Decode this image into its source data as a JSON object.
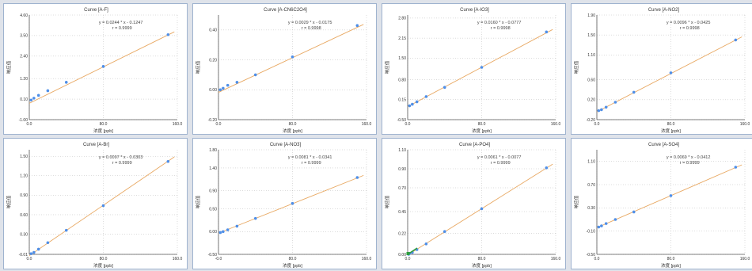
{
  "colors": {
    "line": "#e8a862",
    "point": "#4f8fe8",
    "axis": "#555555",
    "grid": "#b9b9b9",
    "highlight": "#2e9e3e"
  },
  "chart_data": [
    {
      "type": "scatter",
      "title": "Curve [A-F]",
      "equation": "y = 0.0244 * x - 0.1247",
      "r_label": "r = 0.9999",
      "xlabel": "浓度 [ppb]",
      "ylabel": "响应值",
      "xlim": [
        0,
        160
      ],
      "ylim": [
        -1.0,
        4.6
      ],
      "xticks": [
        0,
        80,
        160
      ],
      "xtick_labels": [
        "0.0",
        "80.0",
        "160.0"
      ],
      "yticks": [
        -1.0,
        0.1,
        1.2,
        2.4,
        3.5,
        4.6
      ],
      "ytick_labels": [
        "-1.00",
        "0.10",
        "1.20",
        "2.40",
        "3.50",
        "4.60"
      ],
      "points": [
        [
          2,
          0.05
        ],
        [
          5,
          0.15
        ],
        [
          10,
          0.3
        ],
        [
          20,
          0.55
        ],
        [
          40,
          1.0
        ],
        [
          80,
          1.85
        ],
        [
          150,
          3.55
        ]
      ],
      "fit": {
        "slope": 0.0244,
        "intercept": -0.1247
      }
    },
    {
      "type": "scatter",
      "title": "Curve [A-CN6C2O4]",
      "equation": "y = 0.0029 * x - 0.0175",
      "r_label": "r = 0.9998",
      "xlabel": "浓度 [ppb]",
      "ylabel": "响应值",
      "xlim": [
        0,
        160
      ],
      "ylim": [
        -0.2,
        0.5
      ],
      "xticks": [
        0,
        80,
        160
      ],
      "xtick_labels": [
        "0.0",
        "80.0",
        "160.0"
      ],
      "yticks": [
        -0.2,
        0.0,
        0.2,
        0.4
      ],
      "ytick_labels": [
        "-0.20",
        "0.00",
        "0.20",
        "0.40"
      ],
      "points": [
        [
          2,
          0.0
        ],
        [
          5,
          0.01
        ],
        [
          10,
          0.03
        ],
        [
          20,
          0.05
        ],
        [
          40,
          0.1
        ],
        [
          80,
          0.22
        ],
        [
          150,
          0.43
        ]
      ],
      "fit": {
        "slope": 0.0029,
        "intercept": -0.0175
      }
    },
    {
      "type": "scatter",
      "title": "Curve [A-IO3]",
      "equation": "y = 0.0160 * x - 0.0777",
      "r_label": "r = 0.9998",
      "xlabel": "浓度 [ppb]",
      "ylabel": "响应值",
      "xlim": [
        0,
        160
      ],
      "ylim": [
        -0.5,
        2.9
      ],
      "xticks": [
        0,
        80,
        160
      ],
      "xtick_labels": [
        "0.0",
        "80.0",
        "160.0"
      ],
      "yticks": [
        -0.5,
        0.15,
        0.8,
        1.5,
        2.15,
        2.8
      ],
      "ytick_labels": [
        "-0.50",
        "0.15",
        "0.80",
        "1.50",
        "2.15",
        "2.80"
      ],
      "points": [
        [
          2,
          -0.05
        ],
        [
          5,
          0.0
        ],
        [
          10,
          0.08
        ],
        [
          20,
          0.25
        ],
        [
          40,
          0.55
        ],
        [
          80,
          1.2
        ],
        [
          150,
          2.35
        ]
      ],
      "fit": {
        "slope": 0.016,
        "intercept": -0.0777
      }
    },
    {
      "type": "scatter",
      "title": "Curve [A-NO2]",
      "equation": "y = 0.0096 * x - 0.0425",
      "r_label": "r = 0.9998",
      "xlabel": "浓度 [ppb]",
      "ylabel": "响应值",
      "xlim": [
        0,
        160
      ],
      "ylim": [
        -0.2,
        1.9
      ],
      "xticks": [
        0,
        80,
        160
      ],
      "xtick_labels": [
        "0.0",
        "80.0",
        "160.0"
      ],
      "yticks": [
        -0.2,
        0.2,
        0.6,
        1.1,
        1.5,
        1.9
      ],
      "ytick_labels": [
        "-0.20",
        "0.20",
        "0.60",
        "1.10",
        "1.50",
        "1.90"
      ],
      "points": [
        [
          2,
          -0.02
        ],
        [
          5,
          0.0
        ],
        [
          10,
          0.05
        ],
        [
          20,
          0.15
        ],
        [
          40,
          0.35
        ],
        [
          80,
          0.74
        ],
        [
          150,
          1.4
        ]
      ],
      "fit": {
        "slope": 0.0096,
        "intercept": -0.0425
      }
    },
    {
      "type": "scatter",
      "title": "Curve [A-Br]",
      "equation": "y = 0.0097 * x - 0.0303",
      "r_label": "r = 0.9999",
      "xlabel": "浓度 [ppb]",
      "ylabel": "响应值",
      "xlim": [
        0,
        160
      ],
      "ylim": [
        -0.01,
        1.6
      ],
      "xticks": [
        0,
        80,
        160
      ],
      "xtick_labels": [
        "0.0",
        "80.0",
        "160.0"
      ],
      "yticks": [
        -0.01,
        0.3,
        0.6,
        0.9,
        1.2,
        1.5
      ],
      "ytick_labels": [
        "-0.01",
        "0.30",
        "0.60",
        "0.90",
        "1.20",
        "1.50"
      ],
      "points": [
        [
          2,
          0.0
        ],
        [
          5,
          0.02
        ],
        [
          10,
          0.07
        ],
        [
          20,
          0.17
        ],
        [
          40,
          0.36
        ],
        [
          80,
          0.74
        ],
        [
          150,
          1.42
        ]
      ],
      "fit": {
        "slope": 0.0097,
        "intercept": -0.0303
      }
    },
    {
      "type": "scatter",
      "title": "Curve [A-NO3]",
      "equation": "y = 0.0081 * x - 0.0341",
      "r_label": "r = 0.9999",
      "xlabel": "浓度 [ppb]",
      "ylabel": "响应值",
      "xlim": [
        0,
        160
      ],
      "ylim": [
        -0.5,
        1.8
      ],
      "xticks": [
        0,
        80,
        160
      ],
      "xtick_labels": [
        "-0.0",
        "80.0",
        "160.0"
      ],
      "yticks": [
        -0.5,
        0.0,
        0.5,
        0.9,
        1.4,
        1.8
      ],
      "ytick_labels": [
        "-0.50",
        "0.00",
        "0.50",
        "0.90",
        "1.40",
        "1.80"
      ],
      "points": [
        [
          2,
          -0.02
        ],
        [
          5,
          0.0
        ],
        [
          10,
          0.04
        ],
        [
          20,
          0.12
        ],
        [
          40,
          0.29
        ],
        [
          80,
          0.62
        ],
        [
          150,
          1.19
        ]
      ],
      "fit": {
        "slope": 0.0081,
        "intercept": -0.0341
      }
    },
    {
      "type": "scatter",
      "title": "Curve [A-PO4]",
      "equation": "y = 0.0061 * x - 0.0077",
      "r_label": "r = 0.9999",
      "xlabel": "浓度 [ppb]",
      "ylabel": "响应值",
      "xlim": [
        0,
        160
      ],
      "ylim": [
        0.0,
        1.1
      ],
      "xticks": [
        0,
        80,
        160
      ],
      "xtick_labels": [
        "0.0",
        "80.0",
        "160.0"
      ],
      "yticks": [
        0.0,
        0.22,
        0.45,
        0.7,
        0.9,
        1.1
      ],
      "ytick_labels": [
        "0.00",
        "0.22",
        "0.45",
        "0.70",
        "0.90",
        "1.10"
      ],
      "points": [
        [
          1,
          0.0
        ],
        [
          2,
          0.01
        ],
        [
          5,
          0.02
        ],
        [
          10,
          0.05
        ],
        [
          20,
          0.11
        ],
        [
          40,
          0.24
        ],
        [
          80,
          0.48
        ],
        [
          150,
          0.91
        ]
      ],
      "fit": {
        "slope": 0.0061,
        "intercept": -0.0077
      },
      "highlight_origin": true
    },
    {
      "type": "scatter",
      "title": "Curve [A-SO4]",
      "equation": "y = 0.0069 * x - 0.0412",
      "r_label": "r = 0.9999",
      "xlabel": "浓度 [ppb]",
      "ylabel": "响应值",
      "xlim": [
        0,
        160
      ],
      "ylim": [
        -0.5,
        1.3
      ],
      "xticks": [
        0,
        80,
        160
      ],
      "xtick_labels": [
        "0.0",
        "80.0",
        "160.0"
      ],
      "yticks": [
        -0.5,
        -0.1,
        0.3,
        0.7,
        1.1
      ],
      "ytick_labels": [
        "-0.50",
        "-0.10",
        "0.30",
        "0.70",
        "1.10"
      ],
      "points": [
        [
          2,
          -0.03
        ],
        [
          5,
          -0.01
        ],
        [
          10,
          0.03
        ],
        [
          20,
          0.1
        ],
        [
          40,
          0.23
        ],
        [
          80,
          0.51
        ],
        [
          150,
          1.0
        ]
      ],
      "fit": {
        "slope": 0.0069,
        "intercept": -0.0412
      }
    }
  ]
}
